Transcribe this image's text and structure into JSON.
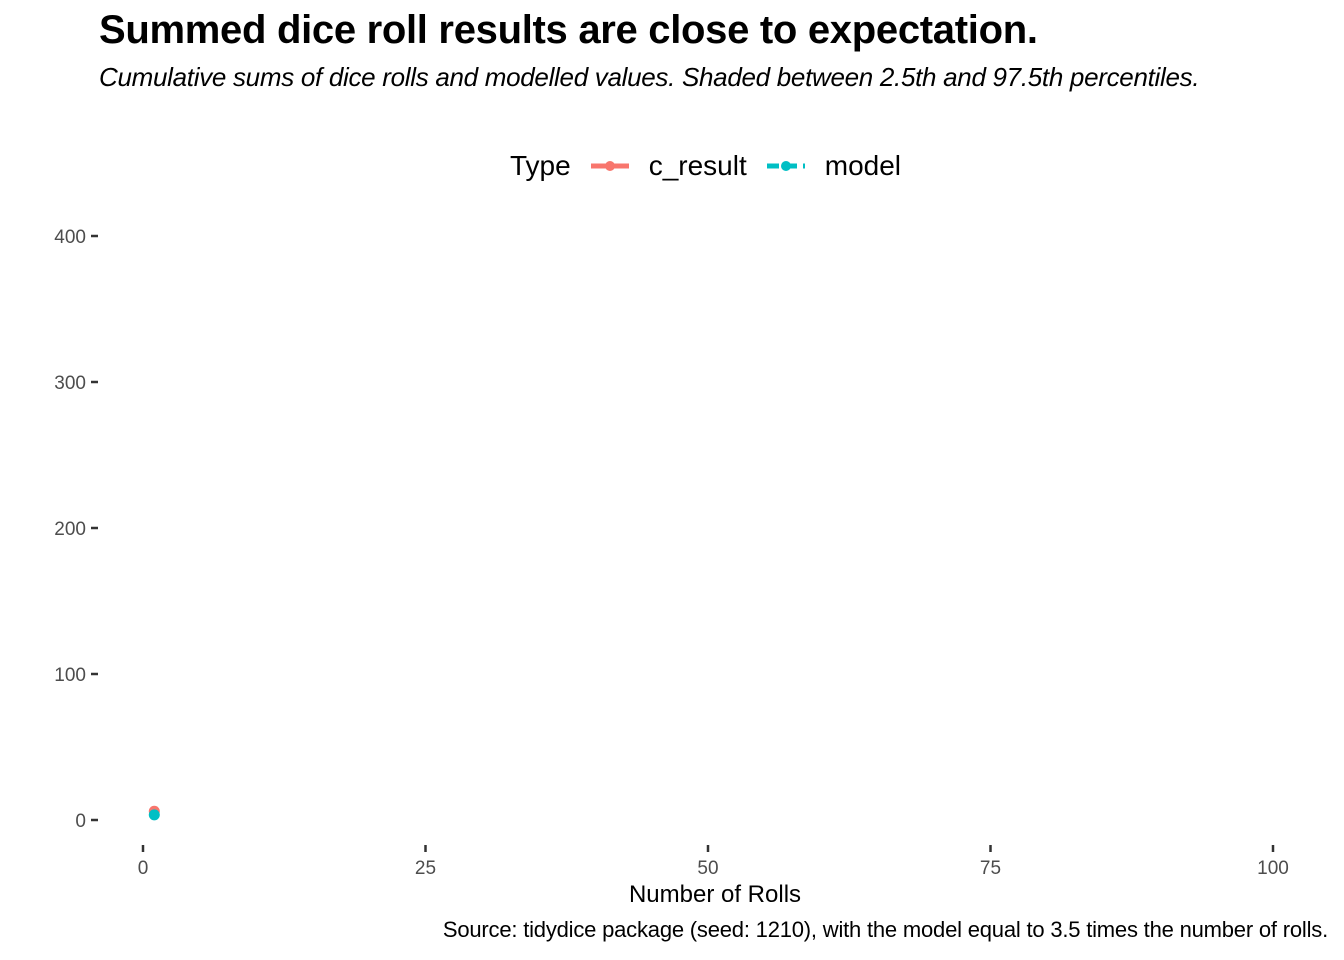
{
  "chart_data": {
    "type": "line",
    "title": "Summed dice roll results are close to expectation.",
    "subtitle": "Cumulative sums of dice rolls and modelled values. Shaded between 2.5th and 97.5th percentiles.",
    "caption": "Source: tidydice package (seed: 1210), with the model equal to 3.5 times the number of rolls.",
    "xlabel": "Number of Rolls",
    "ylabel": "",
    "xlim": [
      0,
      100
    ],
    "ylim": [
      0,
      400
    ],
    "x_ticks": [
      0,
      25,
      50,
      75,
      100
    ],
    "y_ticks": [
      0,
      100,
      200,
      300,
      400
    ],
    "grid": false,
    "legend": {
      "title": "Type",
      "placement": "top"
    },
    "series": [
      {
        "name": "c_result",
        "color": "#F8766D",
        "line": "solid",
        "x": [
          1
        ],
        "y": [
          6
        ]
      },
      {
        "name": "model",
        "color": "#00BFC4",
        "line": "dashed",
        "x": [
          1
        ],
        "y": [
          3.5
        ]
      }
    ]
  }
}
